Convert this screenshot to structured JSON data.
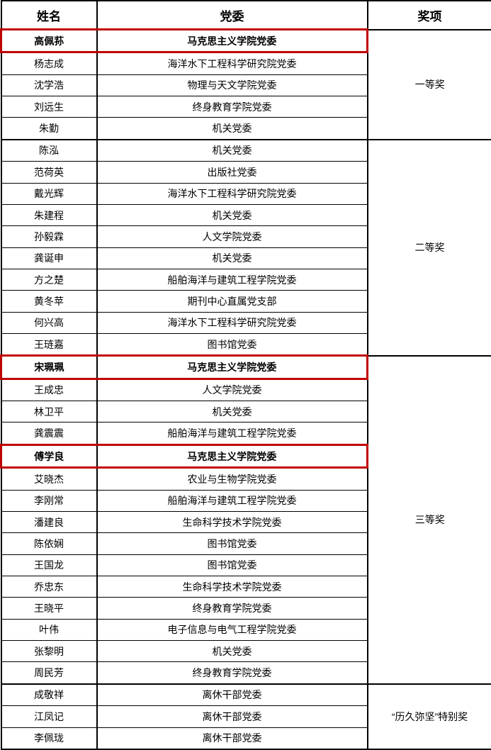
{
  "colors": {
    "background": "#ffffff",
    "border": "#000000",
    "highlight_box": "#c00000",
    "text": "#000000"
  },
  "table": {
    "headers": {
      "name": "姓名",
      "committee": "党委",
      "award": "奖项"
    },
    "award_groups": [
      {
        "award": "一等奖",
        "rows": [
          {
            "name": "高佩荪",
            "committee": "马克思主义学院党委",
            "highlighted": true
          },
          {
            "name": "杨志成",
            "committee": "海洋水下工程科学研究院党委",
            "highlighted": false
          },
          {
            "name": "沈学浩",
            "committee": "物理与天文学院党委",
            "highlighted": false
          },
          {
            "name": "刘远生",
            "committee": "终身教育学院党委",
            "highlighted": false
          },
          {
            "name": "朱勤",
            "committee": "机关党委",
            "highlighted": false
          }
        ]
      },
      {
        "award": "二等奖",
        "rows": [
          {
            "name": "陈泓",
            "committee": "机关党委",
            "highlighted": false
          },
          {
            "name": "范荷英",
            "committee": "出版社党委",
            "highlighted": false
          },
          {
            "name": "戴光辉",
            "committee": "海洋水下工程科学研究院党委",
            "highlighted": false
          },
          {
            "name": "朱建程",
            "committee": "机关党委",
            "highlighted": false
          },
          {
            "name": "孙毅霖",
            "committee": "人文学院党委",
            "highlighted": false
          },
          {
            "name": "龚诞申",
            "committee": "机关党委",
            "highlighted": false
          },
          {
            "name": "方之楚",
            "committee": "船舶海洋与建筑工程学院党委",
            "highlighted": false
          },
          {
            "name": "黄冬苹",
            "committee": "期刊中心直属党支部",
            "highlighted": false
          },
          {
            "name": "何兴高",
            "committee": "海洋水下工程科学研究院党委",
            "highlighted": false
          },
          {
            "name": "王琏嘉",
            "committee": "图书馆党委",
            "highlighted": false
          }
        ]
      },
      {
        "award": "三等奖",
        "rows": [
          {
            "name": "宋珮珮",
            "committee": "马克思主义学院党委",
            "highlighted": true
          },
          {
            "name": "王成忠",
            "committee": "人文学院党委",
            "highlighted": false
          },
          {
            "name": "林卫平",
            "committee": "机关党委",
            "highlighted": false
          },
          {
            "name": "龚震震",
            "committee": "船舶海洋与建筑工程学院党委",
            "highlighted": false
          },
          {
            "name": "傅学良",
            "committee": "马克思主义学院党委",
            "highlighted": true
          },
          {
            "name": "艾晓杰",
            "committee": "农业与生物学院党委",
            "highlighted": false
          },
          {
            "name": "李刚常",
            "committee": "船舶海洋与建筑工程学院党委",
            "highlighted": false
          },
          {
            "name": "潘建良",
            "committee": "生命科学技术学院党委",
            "highlighted": false
          },
          {
            "name": "陈依娴",
            "committee": "图书馆党委",
            "highlighted": false
          },
          {
            "name": "王国龙",
            "committee": "图书馆党委",
            "highlighted": false
          },
          {
            "name": "乔忠东",
            "committee": "生命科学技术学院党委",
            "highlighted": false
          },
          {
            "name": "王晓平",
            "committee": "终身教育学院党委",
            "highlighted": false
          },
          {
            "name": "叶伟",
            "committee": "电子信息与电气工程学院党委",
            "highlighted": false
          },
          {
            "name": "张黎明",
            "committee": "机关党委",
            "highlighted": false
          },
          {
            "name": "周民芳",
            "committee": "终身教育学院党委",
            "highlighted": false
          }
        ]
      },
      {
        "award": "“历久弥坚”特别奖",
        "rows": [
          {
            "name": "成敬祥",
            "committee": "离休干部党委",
            "highlighted": false
          },
          {
            "name": "江凤记",
            "committee": "离休干部党委",
            "highlighted": false
          },
          {
            "name": "李佩珑",
            "committee": "离休干部党委",
            "highlighted": false
          }
        ]
      }
    ]
  }
}
